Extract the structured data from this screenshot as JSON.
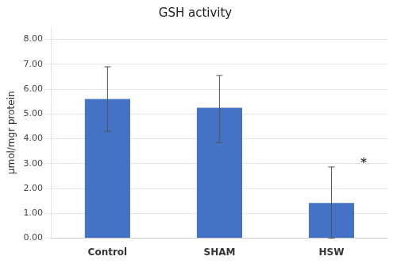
{
  "chart_data": {
    "type": "bar",
    "title": "GSH activity",
    "ylabel": "μmol/mgr protein",
    "categories": [
      "Control",
      "SHAM",
      "HSW"
    ],
    "values": [
      5.6,
      5.25,
      1.42
    ],
    "errors_upper": [
      1.3,
      1.3,
      1.45
    ],
    "errors_lower": [
      1.3,
      1.4,
      1.42
    ],
    "color": "#4472C4",
    "ylim": [
      0.0,
      8.5
    ],
    "yticks": [
      {
        "value": 0.0,
        "label": "0.00"
      },
      {
        "value": 1.0,
        "label": "1.00"
      },
      {
        "value": 2.0,
        "label": "2.00"
      },
      {
        "value": 3.0,
        "label": "3.00"
      },
      {
        "value": 4.0,
        "label": "4.00"
      },
      {
        "value": 5.0,
        "label": "5.00"
      },
      {
        "value": 6.0,
        "label": "6.00"
      },
      {
        "value": 7.0,
        "label": "7.00"
      },
      {
        "value": 8.0,
        "label": "8.00"
      }
    ],
    "grid": true,
    "annotations": [
      {
        "text": "*",
        "x": "HSW",
        "y": 3.0
      }
    ]
  }
}
